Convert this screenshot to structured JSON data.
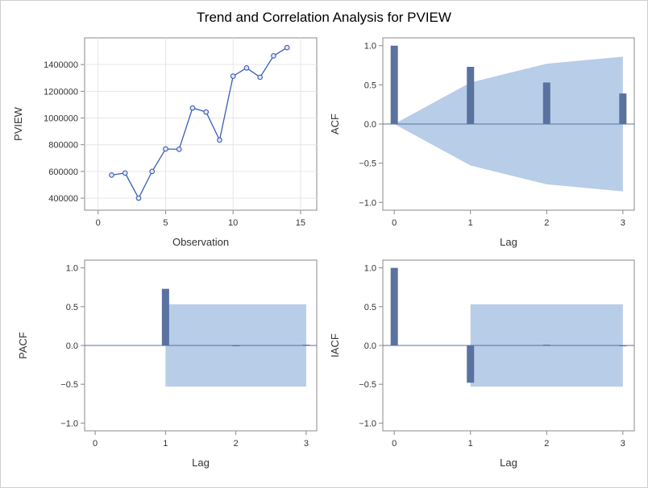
{
  "title": "Trend and Correlation Analysis for PVIEW",
  "colors": {
    "bar": "#5a72a0",
    "band": "#b8cde8",
    "series": "#3a5fb5",
    "zeroline": "#5a72a0"
  },
  "chart_data": [
    {
      "id": "trend",
      "type": "line",
      "xlabel": "Observation",
      "ylabel": "PVIEW",
      "xlim": [
        -1,
        16.2
      ],
      "ylim": [
        310000,
        1600000
      ],
      "xticks": [
        0,
        5,
        10,
        15
      ],
      "yticks": [
        400000,
        600000,
        800000,
        1000000,
        1200000,
        1400000
      ],
      "x": [
        1,
        2,
        3,
        4,
        5,
        6,
        7,
        8,
        9,
        10,
        11,
        12,
        13,
        14
      ],
      "y": [
        573000,
        588000,
        400000,
        600000,
        768000,
        766000,
        1075000,
        1045000,
        835000,
        1313000,
        1375000,
        1305000,
        1465000,
        1527000
      ],
      "grid": true
    },
    {
      "id": "acf",
      "type": "bar",
      "xlabel": "Lag",
      "ylabel": "ACF",
      "xlim": [
        -0.15,
        3.15
      ],
      "ylim": [
        -1.1,
        1.1
      ],
      "xticks": [
        0,
        1,
        2,
        3
      ],
      "yticks": [
        -1.0,
        -0.5,
        0.0,
        0.5,
        1.0
      ],
      "ytick_labels": [
        "−1.0",
        "−0.5",
        "0.0",
        "0.5",
        "1.0"
      ],
      "lags": [
        0,
        1,
        2,
        3
      ],
      "values": [
        1.0,
        0.73,
        0.53,
        0.39
      ],
      "band": {
        "x": [
          0,
          1,
          2,
          3
        ],
        "upper": [
          0,
          0.53,
          0.77,
          0.86
        ],
        "lower": [
          0,
          -0.53,
          -0.77,
          -0.86
        ]
      }
    },
    {
      "id": "pacf",
      "type": "bar",
      "xlabel": "Lag",
      "ylabel": "PACF",
      "xlim": [
        -0.15,
        3.15
      ],
      "ylim": [
        -1.1,
        1.1
      ],
      "xticks": [
        0,
        1,
        2,
        3
      ],
      "yticks": [
        -1.0,
        -0.5,
        0.0,
        0.5,
        1.0
      ],
      "ytick_labels": [
        "−1.0",
        "−0.5",
        "0.0",
        "0.5",
        "1.0"
      ],
      "lags": [
        1,
        2,
        3
      ],
      "values": [
        0.73,
        0.0,
        0.01
      ],
      "band": {
        "x": [
          1,
          3
        ],
        "upper": [
          0.53,
          0.53
        ],
        "lower": [
          -0.53,
          -0.53
        ]
      }
    },
    {
      "id": "iacf",
      "type": "bar",
      "xlabel": "Lag",
      "ylabel": "IACF",
      "xlim": [
        -0.15,
        3.15
      ],
      "ylim": [
        -1.1,
        1.1
      ],
      "xticks": [
        0,
        1,
        2,
        3
      ],
      "yticks": [
        -1.0,
        -0.5,
        0.0,
        0.5,
        1.0
      ],
      "ytick_labels": [
        "−1.0",
        "−0.5",
        "0.0",
        "0.5",
        "1.0"
      ],
      "lags": [
        0,
        1,
        2,
        3
      ],
      "values": [
        1.0,
        -0.48,
        0.01,
        -0.01
      ],
      "band": {
        "x": [
          1,
          3
        ],
        "upper": [
          0.53,
          0.53
        ],
        "lower": [
          -0.53,
          -0.53
        ]
      }
    }
  ]
}
